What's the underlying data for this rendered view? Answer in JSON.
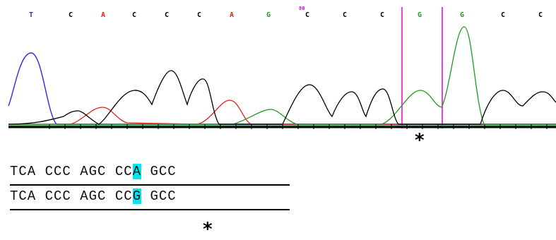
{
  "trace": {
    "bases": [
      {
        "letter": "T",
        "color": "#2a2ae8"
      },
      {
        "letter": "C",
        "color": "#000000"
      },
      {
        "letter": "A",
        "color": "#e0201a"
      },
      {
        "letter": "C",
        "color": "#000000"
      },
      {
        "letter": "C",
        "color": "#000000"
      },
      {
        "letter": "C",
        "color": "#000000"
      },
      {
        "letter": "A",
        "color": "#e0201a"
      },
      {
        "letter": "G",
        "color": "#1f9a1f"
      },
      {
        "letter": "C",
        "color": "#000000"
      },
      {
        "letter": "C",
        "color": "#000000"
      },
      {
        "letter": "C",
        "color": "#000000"
      },
      {
        "letter": "G",
        "color": "#1f9a1f"
      },
      {
        "letter": "G",
        "color": "#1f9a1f"
      },
      {
        "letter": "C",
        "color": "#000000"
      },
      {
        "letter": "C",
        "color": "#000000"
      }
    ],
    "position_label": "80",
    "marker_color": "#e000e0"
  },
  "mutation_marker": "*",
  "alignment": {
    "rows": [
      {
        "pre": "TCA CCC AGC CC",
        "hl": "A",
        "post": " GCC"
      },
      {
        "pre": "TCA CCC AGC CC",
        "hl": "G",
        "post": " GCC"
      }
    ]
  },
  "colors": {
    "A": "#e0201a",
    "C": "#000000",
    "G": "#1f9a1f",
    "T": "#2a2ae8",
    "highlight": "#00e5f0"
  }
}
